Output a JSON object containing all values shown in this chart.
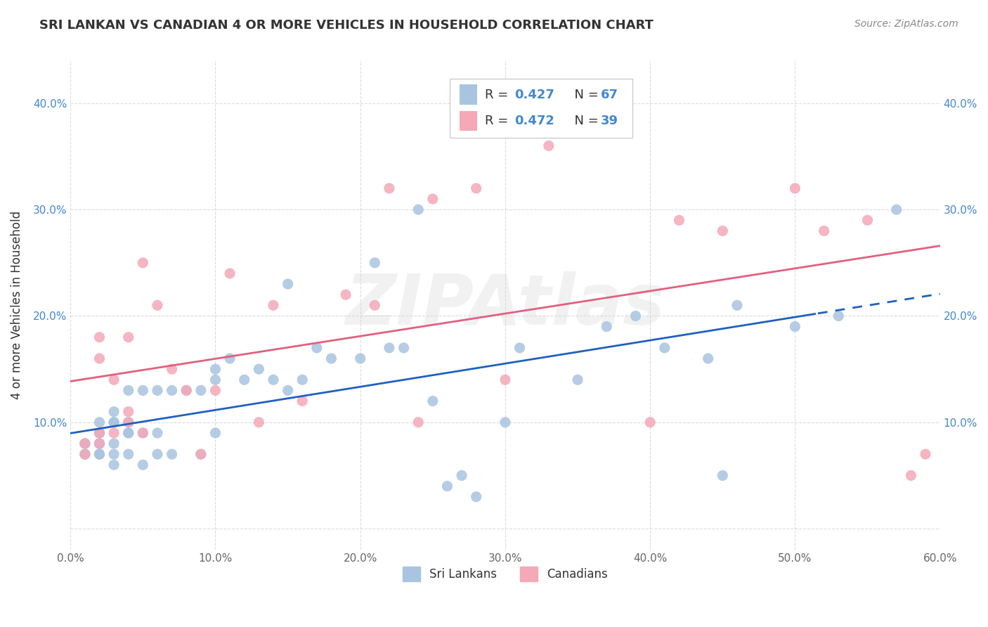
{
  "title": "SRI LANKAN VS CANADIAN 4 OR MORE VEHICLES IN HOUSEHOLD CORRELATION CHART",
  "source": "Source: ZipAtlas.com",
  "ylabel": "4 or more Vehicles in Household",
  "xlim": [
    0.0,
    0.6
  ],
  "ylim": [
    -0.02,
    0.44
  ],
  "xticks": [
    0.0,
    0.1,
    0.2,
    0.3,
    0.4,
    0.5,
    0.6
  ],
  "yticks": [
    0.0,
    0.1,
    0.2,
    0.3,
    0.4
  ],
  "xtick_labels": [
    "0.0%",
    "10.0%",
    "20.0%",
    "30.0%",
    "40.0%",
    "50.0%",
    "60.0%"
  ],
  "ytick_labels": [
    "",
    "10.0%",
    "20.0%",
    "30.0%",
    "40.0%"
  ],
  "sri_lankan_color": "#a8c4e0",
  "canadian_color": "#f4a8b8",
  "sri_lankan_line_color": "#2060c0",
  "canadian_line_color": "#e06080",
  "watermark": "ZIPAtlas",
  "legend_r1": "0.427",
  "legend_n1": "67",
  "legend_r2": "0.472",
  "legend_n2": "39",
  "sri_lankans_x": [
    0.01,
    0.01,
    0.01,
    0.01,
    0.02,
    0.02,
    0.02,
    0.02,
    0.02,
    0.02,
    0.02,
    0.02,
    0.03,
    0.03,
    0.03,
    0.03,
    0.03,
    0.03,
    0.04,
    0.04,
    0.04,
    0.04,
    0.04,
    0.05,
    0.05,
    0.05,
    0.06,
    0.06,
    0.06,
    0.07,
    0.07,
    0.08,
    0.09,
    0.09,
    0.1,
    0.1,
    0.1,
    0.11,
    0.12,
    0.13,
    0.14,
    0.15,
    0.15,
    0.16,
    0.17,
    0.18,
    0.2,
    0.21,
    0.22,
    0.23,
    0.24,
    0.25,
    0.26,
    0.27,
    0.28,
    0.3,
    0.31,
    0.35,
    0.37,
    0.39,
    0.41,
    0.44,
    0.45,
    0.46,
    0.5,
    0.53,
    0.57
  ],
  "sri_lankans_y": [
    0.07,
    0.07,
    0.08,
    0.08,
    0.07,
    0.07,
    0.08,
    0.08,
    0.08,
    0.09,
    0.09,
    0.1,
    0.06,
    0.07,
    0.08,
    0.1,
    0.1,
    0.11,
    0.07,
    0.09,
    0.09,
    0.1,
    0.13,
    0.06,
    0.09,
    0.13,
    0.07,
    0.09,
    0.13,
    0.07,
    0.13,
    0.13,
    0.07,
    0.13,
    0.09,
    0.14,
    0.15,
    0.16,
    0.14,
    0.15,
    0.14,
    0.13,
    0.23,
    0.14,
    0.17,
    0.16,
    0.16,
    0.25,
    0.17,
    0.17,
    0.3,
    0.12,
    0.04,
    0.05,
    0.03,
    0.1,
    0.17,
    0.14,
    0.19,
    0.2,
    0.17,
    0.16,
    0.05,
    0.21,
    0.19,
    0.2,
    0.3
  ],
  "canadians_x": [
    0.01,
    0.01,
    0.02,
    0.02,
    0.02,
    0.02,
    0.03,
    0.03,
    0.04,
    0.04,
    0.04,
    0.05,
    0.05,
    0.06,
    0.07,
    0.08,
    0.09,
    0.1,
    0.11,
    0.13,
    0.14,
    0.16,
    0.19,
    0.21,
    0.22,
    0.24,
    0.25,
    0.28,
    0.3,
    0.33,
    0.36,
    0.4,
    0.42,
    0.45,
    0.5,
    0.52,
    0.55,
    0.58,
    0.59
  ],
  "canadians_y": [
    0.07,
    0.08,
    0.08,
    0.09,
    0.16,
    0.18,
    0.09,
    0.14,
    0.1,
    0.11,
    0.18,
    0.09,
    0.25,
    0.21,
    0.15,
    0.13,
    0.07,
    0.13,
    0.24,
    0.1,
    0.21,
    0.12,
    0.22,
    0.21,
    0.32,
    0.1,
    0.31,
    0.32,
    0.14,
    0.36,
    0.4,
    0.1,
    0.29,
    0.28,
    0.32,
    0.28,
    0.29,
    0.05,
    0.07
  ]
}
